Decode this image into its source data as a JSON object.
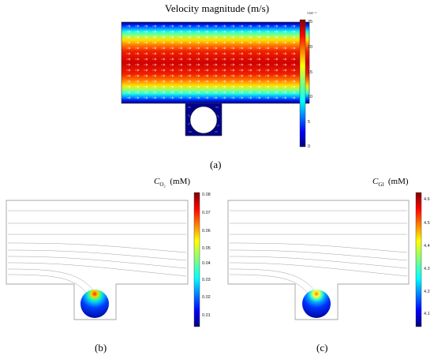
{
  "panel_a": {
    "title": "Velocity magnitude (m/s)",
    "caption": "(a)",
    "colorbar": {
      "exponent": "×10⁻⁴",
      "ticks": [
        "25",
        "20",
        "15",
        "10",
        "5",
        "0"
      ]
    }
  },
  "panel_b": {
    "caption": "(b)",
    "variable": "C",
    "variable_sub": "O₂",
    "unit": "(mM)",
    "colorbar": {
      "ticks": [
        "0.08",
        "0.07",
        "0.06",
        "0.05",
        "0.04",
        "0.03",
        "0.02",
        "0.01"
      ]
    }
  },
  "panel_c": {
    "caption": "(c)",
    "variable": "C",
    "variable_sub": "Gl",
    "unit": "(mM)",
    "colorbar": {
      "ticks": [
        "4.6",
        "4.5",
        "4.4",
        "4.3",
        "4.2",
        "4.1"
      ]
    }
  },
  "colors": {
    "jet_high": "#7f0000",
    "jet_low": "#00007f",
    "stream": "#9a9a9a"
  }
}
